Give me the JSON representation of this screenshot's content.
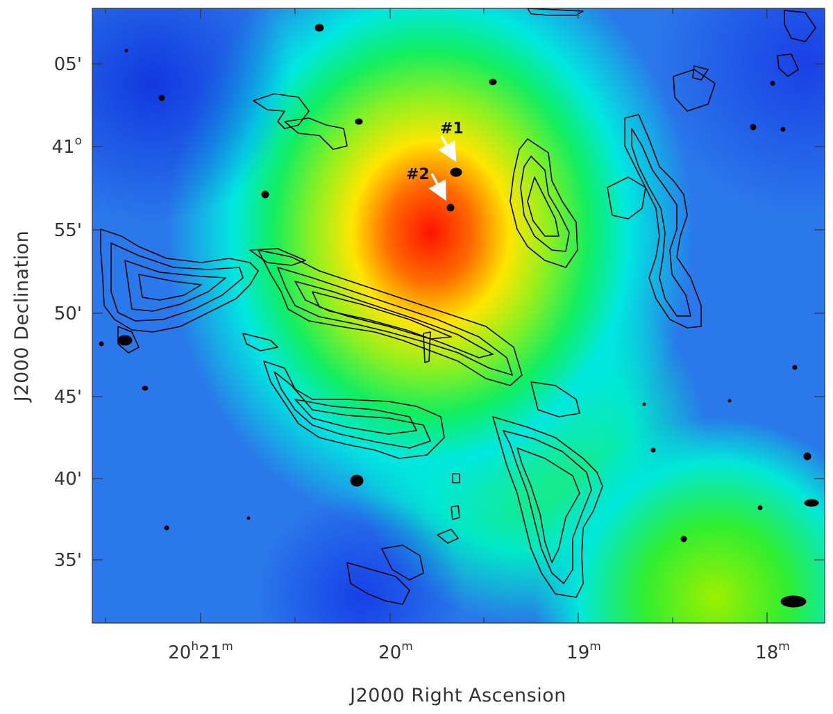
{
  "axes": {
    "x_title": "J2000 Right Ascension",
    "y_title": "J2000 Declination",
    "x_ticks": [
      {
        "h": "20",
        "m": "21"
      },
      {
        "h": "",
        "m": "20"
      },
      {
        "h": "",
        "m": "19"
      },
      {
        "h": "",
        "m": "18"
      }
    ],
    "y_ticks": [
      {
        "deg": "",
        "min": "05'"
      },
      {
        "deg": "41",
        "min": ""
      },
      {
        "deg": "",
        "min": "55'"
      },
      {
        "deg": "",
        "min": "50'"
      },
      {
        "deg": "",
        "min": "45'"
      },
      {
        "deg": "",
        "min": "40'"
      },
      {
        "deg": "",
        "min": "35'"
      }
    ]
  },
  "markers": [
    {
      "id": "#1"
    },
    {
      "id": "#2"
    }
  ],
  "colors": {
    "background_low": "#1f4fe0",
    "mid_cyan": "#00f0f0",
    "mid_green": "#33ee22",
    "high_yellow": "#ffee00",
    "peak_red": "#ff1a00",
    "contour": "#000000",
    "arrow": "#ffffff"
  }
}
